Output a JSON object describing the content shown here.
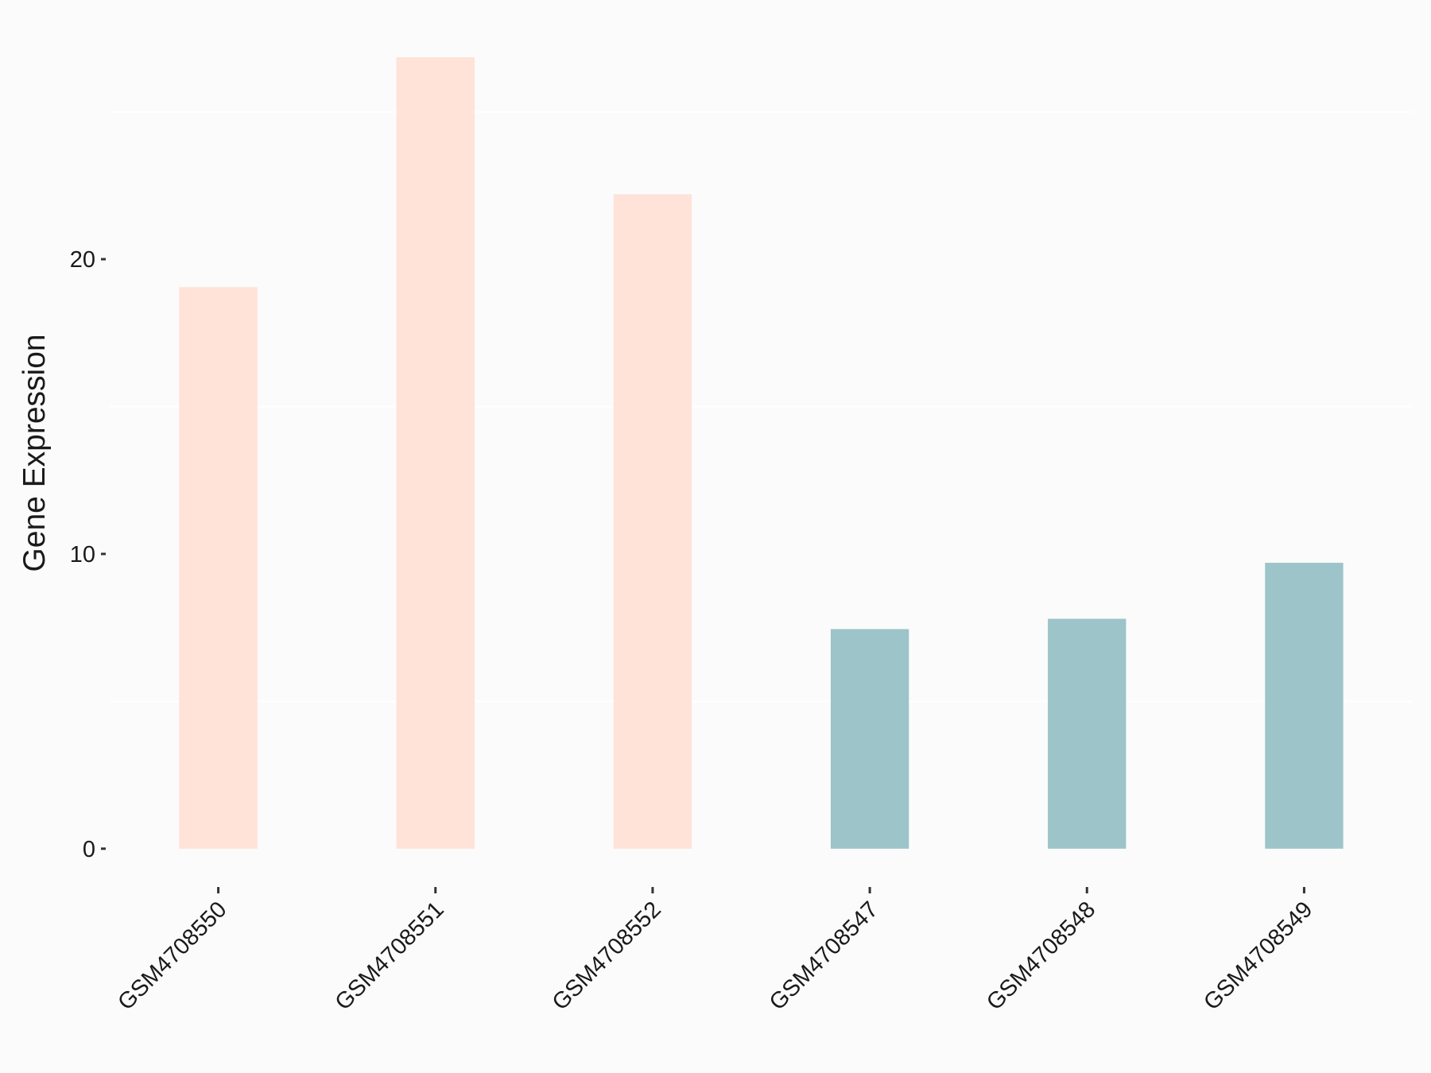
{
  "chart_data": {
    "type": "bar",
    "y_label": "Gene Expression",
    "categories": [
      "GSM4708550",
      "GSM4708551",
      "GSM4708552",
      "GSM4708547",
      "GSM4708548",
      "GSM4708549"
    ],
    "values": [
      19.05,
      26.85,
      22.2,
      7.45,
      7.8,
      9.7
    ],
    "colors": [
      "#FFE2D8",
      "#FFE2D8",
      "#FFE2D8",
      "#9DC4C8",
      "#9DC4C8",
      "#9DC4C8"
    ],
    "ylim": [
      -1.3,
      28.2
    ],
    "yticks": [
      0,
      10,
      20
    ],
    "minor_grid": [
      5,
      15,
      25
    ]
  }
}
